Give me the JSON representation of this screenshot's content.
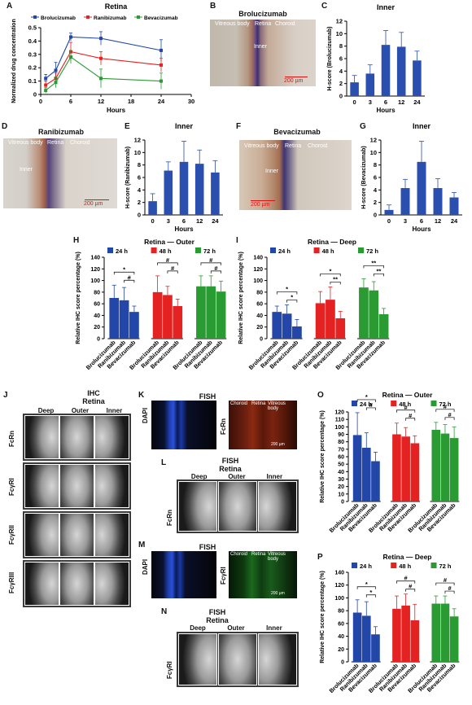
{
  "panels": {
    "A": {
      "letter": "A",
      "title": "Retina"
    },
    "B": {
      "letter": "B",
      "title": "Brolucizumab",
      "img_labels": [
        "Vitreous body",
        "Retina",
        "Choroid",
        "Inner"
      ],
      "scale": "200 µm"
    },
    "C": {
      "letter": "C",
      "title": "Inner"
    },
    "D": {
      "letter": "D",
      "title": "Ranibizumab",
      "img_labels": [
        "Vitreous body",
        "Retina",
        "Choroid",
        "Inner"
      ],
      "scale": "200 µm"
    },
    "E": {
      "letter": "E",
      "title": "Inner"
    },
    "F": {
      "letter": "F",
      "title": "Bevacizumab",
      "img_labels": [
        "Vitreous body",
        "Retina",
        "Choroid",
        "Inner"
      ],
      "scale": "200 µm"
    },
    "G": {
      "letter": "G",
      "title": "Inner"
    },
    "H": {
      "letter": "H",
      "title": "Retina — Outer"
    },
    "I": {
      "letter": "I",
      "title": "Retina — Deep"
    },
    "J": {
      "letter": "J",
      "title1": "IHC",
      "title2": "Retina",
      "cols": [
        "Deep",
        "Outer",
        "Inner"
      ],
      "rows": [
        "FcRn",
        "FcγRI",
        "FcγRII",
        "FcγRIII"
      ]
    },
    "K": {
      "letter": "K",
      "title": "FISH",
      "left_label": "DAPI",
      "right_label": "FcRn",
      "img_labels": [
        "Choroid",
        "Retina",
        "Vitreous body"
      ],
      "scale": "200 µm"
    },
    "L": {
      "letter": "L",
      "title1": "FISH",
      "title2": "Retina",
      "cols": [
        "Deep",
        "Outer",
        "Inner"
      ],
      "row": "FcRn"
    },
    "M": {
      "letter": "M",
      "title": "FISH",
      "left_label": "DAPI",
      "right_label": "FcγRI",
      "img_labels": [
        "Choroid",
        "Retina",
        "Vitreous body"
      ],
      "scale": "200 µm"
    },
    "N": {
      "letter": "N",
      "title1": "FISH",
      "title2": "Retina",
      "cols": [
        "Deep",
        "Outer",
        "Inner"
      ],
      "row": "FcγRI"
    },
    "O": {
      "letter": "O",
      "title": "Retina — Outer"
    },
    "P": {
      "letter": "P",
      "title": "Retina — Deep"
    }
  },
  "colors": {
    "bro": "#2347a8",
    "rani": "#e52222",
    "beva": "#2a9a33",
    "bar": "#2b4fae"
  },
  "chart_data": [
    {
      "id": "A",
      "type": "line",
      "title": "Retina",
      "xlabel": "Hours",
      "ylabel": "Normalized drug concentration",
      "xlim": [
        0,
        30
      ],
      "ylim": [
        0,
        0.5
      ],
      "xticks": [
        0,
        6,
        12,
        18,
        24,
        30
      ],
      "yticks": [
        0,
        0.1,
        0.2,
        0.3,
        0.4,
        0.5
      ],
      "legend": "top",
      "series": [
        {
          "name": "Brolucizumab",
          "x": [
            1,
            3,
            6,
            12,
            24
          ],
          "y": [
            0.12,
            0.18,
            0.43,
            0.42,
            0.33
          ],
          "err": [
            0.03,
            0.06,
            0.03,
            0.05,
            0.08
          ]
        },
        {
          "name": "Ranibizumab",
          "x": [
            1,
            3,
            6,
            12,
            24
          ],
          "y": [
            0.07,
            0.12,
            0.32,
            0.27,
            0.22
          ],
          "err": [
            0.03,
            0.04,
            0.07,
            0.05,
            0.05
          ]
        },
        {
          "name": "Bevacizumab",
          "x": [
            1,
            3,
            6,
            12,
            24
          ],
          "y": [
            0.03,
            0.09,
            0.28,
            0.12,
            0.1
          ],
          "err": [
            0.02,
            0.04,
            0.05,
            0.07,
            0.06
          ]
        }
      ]
    },
    {
      "id": "C",
      "type": "bar",
      "title": "Inner",
      "xlabel": "Hours",
      "ylabel": "H-score (Brolucizumab)",
      "categories": [
        "0",
        "3",
        "6",
        "12",
        "24"
      ],
      "values": [
        2.2,
        3.6,
        8.2,
        7.9,
        5.7
      ],
      "err": [
        1.1,
        1.4,
        2.3,
        2.3,
        1.5
      ],
      "ylim": [
        0,
        12
      ],
      "yticks": [
        0,
        2,
        4,
        6,
        8,
        10,
        12
      ]
    },
    {
      "id": "E",
      "type": "bar",
      "title": "Inner",
      "xlabel": "Hours",
      "ylabel": "H-score (Ranibizumab)",
      "categories": [
        "0",
        "3",
        "6",
        "12",
        "24"
      ],
      "values": [
        2.2,
        7.1,
        8.5,
        8.2,
        6.8
      ],
      "err": [
        1.2,
        1.4,
        3.3,
        2.2,
        1.9
      ],
      "ylim": [
        0,
        12
      ],
      "yticks": [
        0,
        2,
        4,
        6,
        8,
        10,
        12
      ]
    },
    {
      "id": "G",
      "type": "bar",
      "title": "Inner",
      "xlabel": "Hours",
      "ylabel": "H-score (Bevacizumab)",
      "categories": [
        "0",
        "3",
        "6",
        "12",
        "24"
      ],
      "values": [
        0.8,
        4.3,
        8.5,
        4.3,
        2.8
      ],
      "err": [
        0.8,
        1.4,
        3.3,
        1.5,
        0.8
      ],
      "ylim": [
        0,
        12
      ],
      "yticks": [
        0,
        2,
        4,
        6,
        8,
        10,
        12
      ]
    },
    {
      "id": "H",
      "type": "bar",
      "title": "Retina — Outer",
      "ylabel": "Relative IHC score percentage (%)",
      "groups": [
        "24 h",
        "48 h",
        "72 h"
      ],
      "categories": [
        "Brolucizumab",
        "Ranibizumab",
        "Bevacizumab"
      ],
      "values": [
        [
          70,
          66,
          46
        ],
        [
          80,
          75,
          56
        ],
        [
          90,
          90,
          81
        ]
      ],
      "err": [
        [
          22,
          22,
          10
        ],
        [
          28,
          15,
          12
        ],
        [
          18,
          18,
          18
        ]
      ],
      "ylim": [
        0,
        140
      ],
      "yticks": [
        0,
        20,
        40,
        60,
        80,
        100,
        120,
        140
      ],
      "sig": [
        {
          "g": 0,
          "from": 0,
          "to": 2,
          "label": "*"
        },
        {
          "g": 0,
          "from": 1,
          "to": 2,
          "label": "#"
        },
        {
          "g": 1,
          "from": 0,
          "to": 2,
          "label": "#"
        },
        {
          "g": 1,
          "from": 1,
          "to": 2,
          "label": "#"
        },
        {
          "g": 2,
          "from": 0,
          "to": 2,
          "label": "#"
        },
        {
          "g": 2,
          "from": 1,
          "to": 2,
          "label": "#"
        }
      ]
    },
    {
      "id": "I",
      "type": "bar",
      "title": "Retina — Deep",
      "ylabel": "Relative IHC score percentage (%)",
      "groups": [
        "24 h",
        "48 h",
        "72 h"
      ],
      "categories": [
        "Brolucizumab",
        "Ranibizumab",
        "Bevacizumab"
      ],
      "values": [
        [
          46,
          43,
          21
        ],
        [
          61,
          67,
          35
        ],
        [
          88,
          83,
          42
        ]
      ],
      "err": [
        [
          10,
          15,
          12
        ],
        [
          20,
          22,
          12
        ],
        [
          15,
          15,
          10
        ]
      ],
      "ylim": [
        0,
        140
      ],
      "yticks": [
        0,
        20,
        40,
        60,
        80,
        100,
        120,
        140
      ],
      "sig": [
        {
          "g": 0,
          "from": 0,
          "to": 2,
          "label": "*"
        },
        {
          "g": 0,
          "from": 1,
          "to": 2,
          "label": "*"
        },
        {
          "g": 1,
          "from": 0,
          "to": 2,
          "label": "*"
        },
        {
          "g": 1,
          "from": 1,
          "to": 2,
          "label": "**"
        },
        {
          "g": 2,
          "from": 0,
          "to": 2,
          "label": "**"
        },
        {
          "g": 2,
          "from": 1,
          "to": 2,
          "label": "**"
        }
      ]
    },
    {
      "id": "O",
      "type": "bar",
      "title": "Retina — Outer",
      "ylabel": "Relative IHC score percentage (%)",
      "groups": [
        "24 h",
        "48 h",
        "72 h"
      ],
      "categories": [
        "Brolucizumab",
        "Ranibizumab",
        "Bevacizumab"
      ],
      "values": [
        [
          89,
          72,
          54
        ],
        [
          90,
          87,
          78
        ],
        [
          96,
          91,
          85
        ]
      ],
      "err": [
        [
          30,
          20,
          12
        ],
        [
          15,
          12,
          10
        ],
        [
          10,
          12,
          15
        ]
      ],
      "ylim": [
        0,
        120
      ],
      "yticks": [
        0,
        10,
        20,
        30,
        40,
        50,
        60,
        70,
        80,
        90,
        100,
        110,
        120
      ],
      "sig": [
        {
          "g": 0,
          "from": 0,
          "to": 2,
          "label": "*"
        },
        {
          "g": 0,
          "from": 1,
          "to": 2,
          "label": "#"
        },
        {
          "g": 1,
          "from": 0,
          "to": 2,
          "label": "#"
        },
        {
          "g": 1,
          "from": 1,
          "to": 2,
          "label": "#"
        },
        {
          "g": 2,
          "from": 0,
          "to": 2,
          "label": "#"
        },
        {
          "g": 2,
          "from": 1,
          "to": 2,
          "label": "#"
        }
      ]
    },
    {
      "id": "P",
      "type": "bar",
      "title": "Retina — Deep",
      "ylabel": "Relative IHC score percentage (%)",
      "groups": [
        "24 h",
        "48 h",
        "72 h"
      ],
      "categories": [
        "Brolucizumab",
        "Ranibizumab",
        "Bevacizumab"
      ],
      "values": [
        [
          77,
          72,
          43
        ],
        [
          83,
          88,
          65
        ],
        [
          91,
          91,
          71
        ]
      ],
      "err": [
        [
          20,
          22,
          12
        ],
        [
          20,
          18,
          25
        ],
        [
          12,
          12,
          12
        ]
      ],
      "ylim": [
        0,
        140
      ],
      "yticks": [
        0,
        20,
        40,
        60,
        80,
        100,
        120,
        140
      ],
      "sig": [
        {
          "g": 0,
          "from": 0,
          "to": 2,
          "label": "*"
        },
        {
          "g": 0,
          "from": 1,
          "to": 2,
          "label": "*"
        },
        {
          "g": 1,
          "from": 0,
          "to": 2,
          "label": "#"
        },
        {
          "g": 1,
          "from": 1,
          "to": 2,
          "label": "#"
        },
        {
          "g": 2,
          "from": 0,
          "to": 2,
          "label": "#"
        },
        {
          "g": 2,
          "from": 1,
          "to": 2,
          "label": "#"
        }
      ]
    }
  ]
}
